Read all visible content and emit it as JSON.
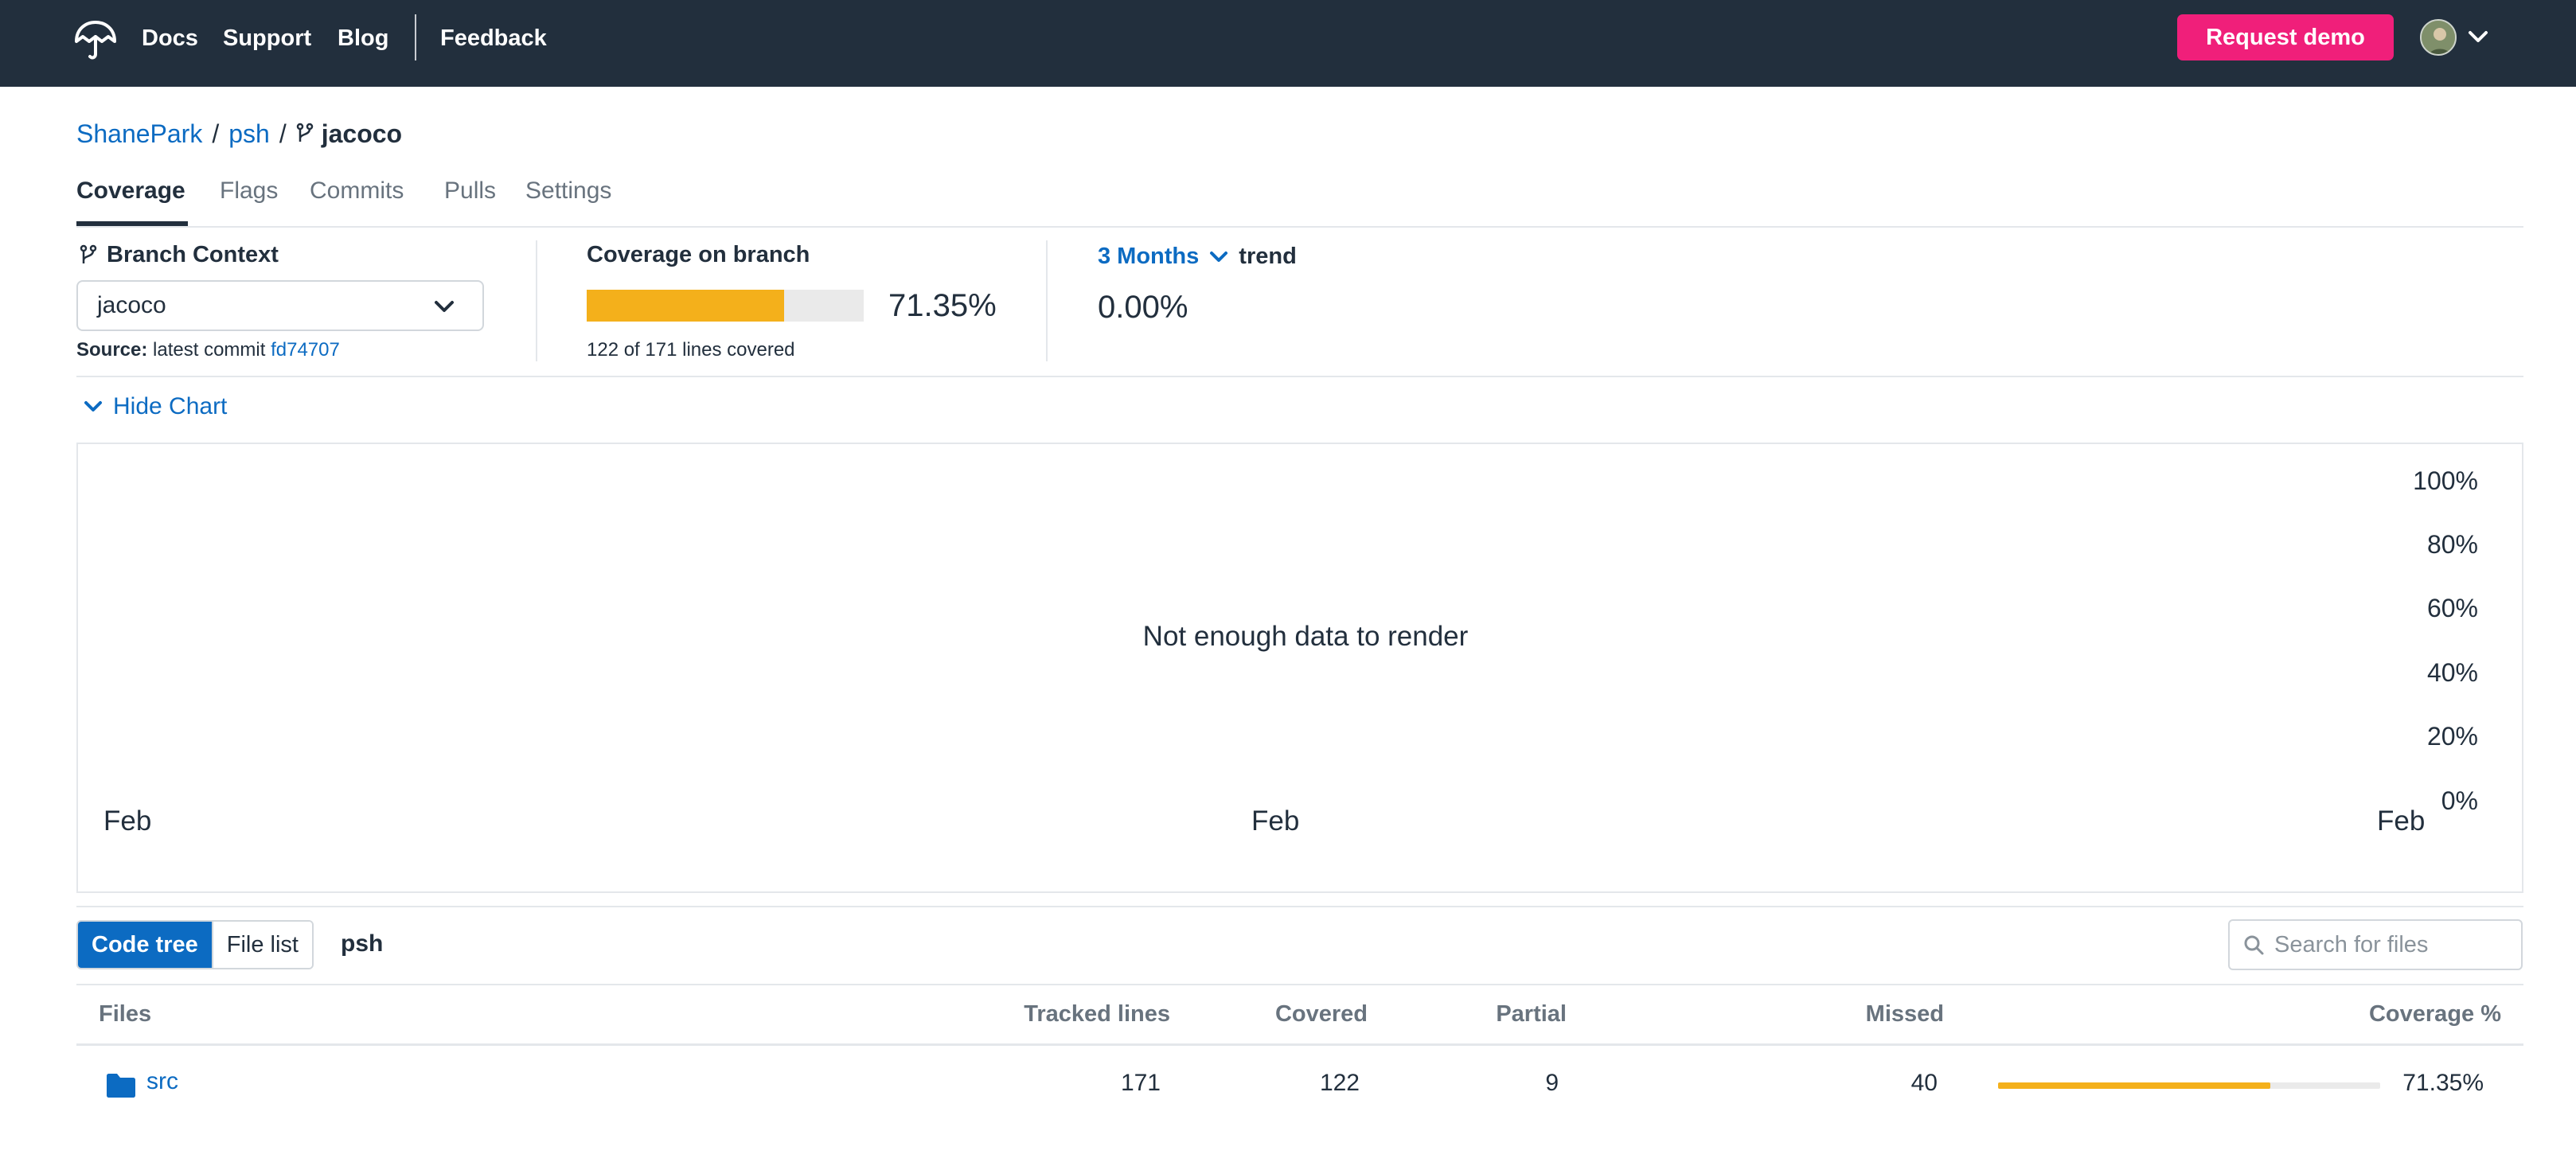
{
  "nav": {
    "links": [
      "Docs",
      "Support",
      "Blog",
      "Feedback"
    ],
    "request_demo": "Request demo",
    "logo_icon": "umbrella-logo-icon",
    "accent_color": "#f01f7a",
    "background_color": "#222f3d"
  },
  "breadcrumb": {
    "owner": "ShanePark",
    "repo": "psh",
    "branch": "jacoco"
  },
  "tabs": [
    "Coverage",
    "Flags",
    "Commits",
    "Pulls",
    "Settings"
  ],
  "active_tab": "Coverage",
  "branch_context": {
    "title": "Branch Context",
    "selected": "jacoco",
    "source_label": "Source:",
    "source_text": "latest commit",
    "commit": "fd74707"
  },
  "coverage": {
    "title": "Coverage on branch",
    "percent": 71.35,
    "value": "71.35%",
    "lines": "122 of 171 lines covered",
    "bar_color": "#f4b01b"
  },
  "trend": {
    "range": "3 Months",
    "label": "trend",
    "value": "0.00%"
  },
  "chart_toggle": "Hide Chart",
  "chart": {
    "message": "Not enough data to render",
    "y_ticks": [
      "100%",
      "80%",
      "60%",
      "40%",
      "20%",
      "0%"
    ],
    "x_ticks": [
      "Feb",
      "Feb",
      "Feb"
    ]
  },
  "toolbar": {
    "code_tree": "Code tree",
    "file_list": "File list",
    "path": "psh",
    "search_placeholder": "Search for files"
  },
  "table": {
    "headers": [
      "Files",
      "Tracked lines",
      "Covered",
      "Partial",
      "Missed",
      "Coverage %"
    ],
    "rows": [
      {
        "name": "src",
        "tracked": "171",
        "covered": "122",
        "partial": "9",
        "missed": "40",
        "coverage_percent": 71.35,
        "coverage": "71.35%"
      }
    ]
  }
}
